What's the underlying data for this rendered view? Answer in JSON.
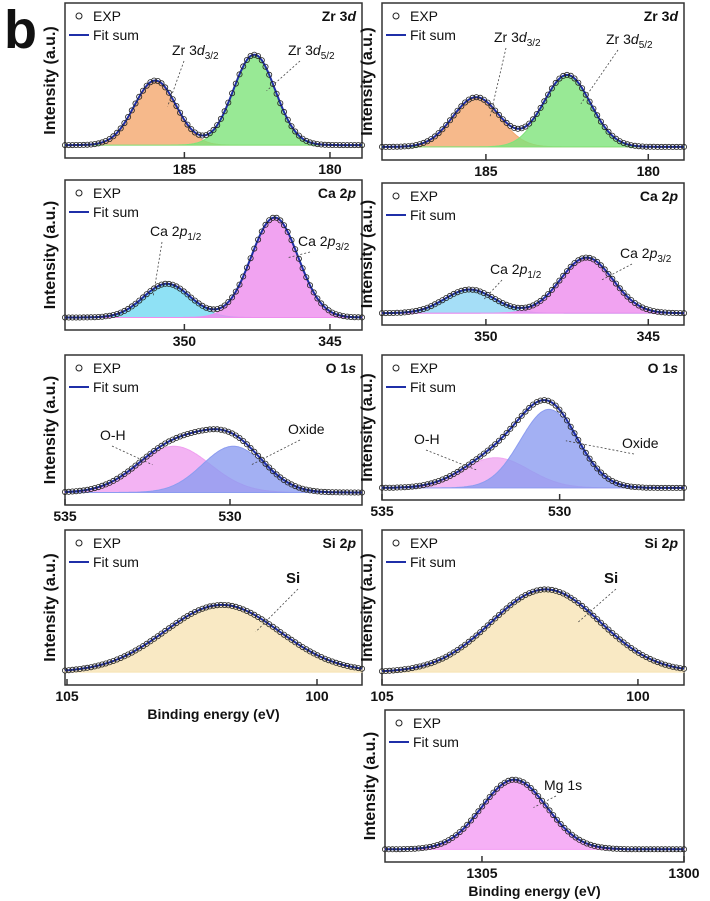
{
  "panel_label": "b",
  "chart_data": [
    {
      "type": "line",
      "title": [
        "Zr 3",
        "d"
      ],
      "ylabel": "Intensity (a.u.)",
      "xlim": [
        189.1,
        178.9
      ],
      "xticks": [
        185,
        180
      ],
      "ylim": [
        -0.1,
        1.1
      ],
      "series": [
        {
          "name": "EXP",
          "color": "#222222"
        },
        {
          "name": "Fit sum",
          "color": "#1f2fa8"
        }
      ],
      "peaks": [
        {
          "label": [
            "Zr 3",
            "d",
            "3/2"
          ],
          "center": 186.0,
          "height": 0.5,
          "fwhm": 1.7,
          "color": "#f4a86e"
        },
        {
          "label": [
            "Zr 3",
            "d",
            "5/2"
          ],
          "center": 182.6,
          "height": 0.7,
          "fwhm": 1.7,
          "color": "#7ee37a"
        }
      ]
    },
    {
      "type": "line",
      "title": [
        "Zr 3",
        "d"
      ],
      "ylabel": "Intensity (a.u.)",
      "xlim": [
        188.2,
        178.9
      ],
      "xticks": [
        185,
        180
      ],
      "ylim": [
        -0.1,
        1.1
      ],
      "series": [
        {
          "name": "EXP",
          "color": "#222222"
        },
        {
          "name": "Fit sum",
          "color": "#1f2fa8"
        }
      ],
      "peaks": [
        {
          "label": [
            "Zr 3",
            "d",
            "3/2"
          ],
          "center": 185.3,
          "height": 0.38,
          "fwhm": 1.7,
          "color": "#f4a86e"
        },
        {
          "label": [
            "Zr 3",
            "d",
            "5/2"
          ],
          "center": 182.5,
          "height": 0.55,
          "fwhm": 1.7,
          "color": "#7ee37a"
        }
      ]
    },
    {
      "type": "line",
      "title": [
        "Ca 2",
        "p"
      ],
      "ylabel": "Intensity (a.u.)",
      "xlim": [
        354.1,
        343.9
      ],
      "xticks": [
        350,
        345
      ],
      "ylim": [
        -0.1,
        1.1
      ],
      "series": [
        {
          "name": "EXP",
          "color": "#222222"
        },
        {
          "name": "Fit sum",
          "color": "#1f2fa8"
        }
      ],
      "peaks": [
        {
          "label": [
            "Ca 2",
            "p",
            "1/2"
          ],
          "center": 350.6,
          "height": 0.27,
          "fwhm": 1.9,
          "color": "#73d9f2"
        },
        {
          "label": [
            "Ca 2",
            "p",
            "3/2"
          ],
          "center": 346.9,
          "height": 0.8,
          "fwhm": 1.9,
          "color": "#ee8cee"
        }
      ]
    },
    {
      "type": "line",
      "title": [
        "Ca 2",
        "p"
      ],
      "ylabel": "Intensity (a.u.)",
      "xlim": [
        353.2,
        343.9
      ],
      "xticks": [
        350,
        345
      ],
      "ylim": [
        -0.1,
        1.1
      ],
      "series": [
        {
          "name": "EXP",
          "color": "#222222"
        },
        {
          "name": "Fit sum",
          "color": "#1f2fa8"
        }
      ],
      "peaks": [
        {
          "label": [
            "Ca 2",
            "p",
            "1/2"
          ],
          "center": 350.5,
          "height": 0.2,
          "fwhm": 1.8,
          "color": "#8fd6f5"
        },
        {
          "label": [
            "Ca 2",
            "p",
            "3/2"
          ],
          "center": 346.9,
          "height": 0.47,
          "fwhm": 1.9,
          "color": "#ee8cee"
        }
      ]
    },
    {
      "type": "line",
      "title": [
        "O 1",
        "s"
      ],
      "ylabel": "Intensity (a.u.)",
      "xlim": [
        535,
        526
      ],
      "xticks": [
        535,
        530
      ],
      "ylim": [
        -0.1,
        1.1
      ],
      "series": [
        {
          "name": "EXP",
          "color": "#222222"
        },
        {
          "name": "Fit sum",
          "color": "#1f2fa8"
        }
      ],
      "peaks": [
        {
          "label": [
            "O-H"
          ],
          "center": 531.7,
          "height": 0.37,
          "fwhm": 2.6,
          "color": "#f0a0f0"
        },
        {
          "label": [
            "Oxide"
          ],
          "center": 529.9,
          "height": 0.37,
          "fwhm": 2.2,
          "color": "#8c9cf0"
        }
      ]
    },
    {
      "type": "line",
      "title": [
        "O 1",
        "s"
      ],
      "ylabel": "Intensity (a.u.)",
      "xlim": [
        535,
        526.5
      ],
      "xticks": [
        535,
        530
      ],
      "ylim": [
        -0.1,
        1.1
      ],
      "series": [
        {
          "name": "EXP",
          "color": "#222222"
        },
        {
          "name": "Fit sum",
          "color": "#1f2fa8"
        }
      ],
      "peaks": [
        {
          "label": [
            "O-H"
          ],
          "center": 531.8,
          "height": 0.25,
          "fwhm": 2.2,
          "color": "#f0a8f0"
        },
        {
          "label": [
            "Oxide"
          ],
          "center": 530.3,
          "height": 0.65,
          "fwhm": 1.9,
          "color": "#8c9cf0"
        }
      ]
    },
    {
      "type": "line",
      "title": [
        "Si 2",
        "p"
      ],
      "ylabel": "Intensity (a.u.)",
      "xlabel": "Binding energy (eV)",
      "xlim": [
        105.04,
        99.1
      ],
      "xticks": [
        105,
        100
      ],
      "ylim": [
        -0.1,
        1.1
      ],
      "series": [
        {
          "name": "EXP",
          "color": "#222222"
        },
        {
          "name": "Fit sum",
          "color": "#1f2fa8"
        }
      ],
      "peaks": [
        {
          "label": [
            "Si"
          ],
          "center": 101.9,
          "height": 0.52,
          "fwhm": 2.7,
          "color": "#f7e3b5"
        }
      ]
    },
    {
      "type": "line",
      "title": [
        "Si 2",
        "p"
      ],
      "ylabel": "Intensity (a.u.)",
      "xlim": [
        105.0,
        99.1
      ],
      "xticks": [
        105,
        100
      ],
      "ylim": [
        -0.1,
        1.1
      ],
      "series": [
        {
          "name": "EXP",
          "color": "#222222"
        },
        {
          "name": "Fit sum",
          "color": "#1f2fa8"
        }
      ],
      "peaks": [
        {
          "label": [
            "Si"
          ],
          "center": 101.8,
          "height": 0.64,
          "fwhm": 2.5,
          "color": "#f7e3b5"
        }
      ]
    },
    {
      "type": "line",
      "ylabel": "Intensity (a.u.)",
      "xlabel": "Binding energy (eV)",
      "xlim": [
        1307.4,
        1300
      ],
      "xticks": [
        1305,
        1300
      ],
      "ylim": [
        -0.1,
        1.1
      ],
      "series": [
        {
          "name": "EXP",
          "color": "#222222"
        },
        {
          "name": "Fit sum",
          "color": "#1f2fa8"
        }
      ],
      "peaks": [
        {
          "label": [
            "Mg 1s"
          ],
          "center": 1304.2,
          "height": 0.55,
          "fwhm": 1.9,
          "color": "#f49cf4"
        }
      ]
    }
  ]
}
